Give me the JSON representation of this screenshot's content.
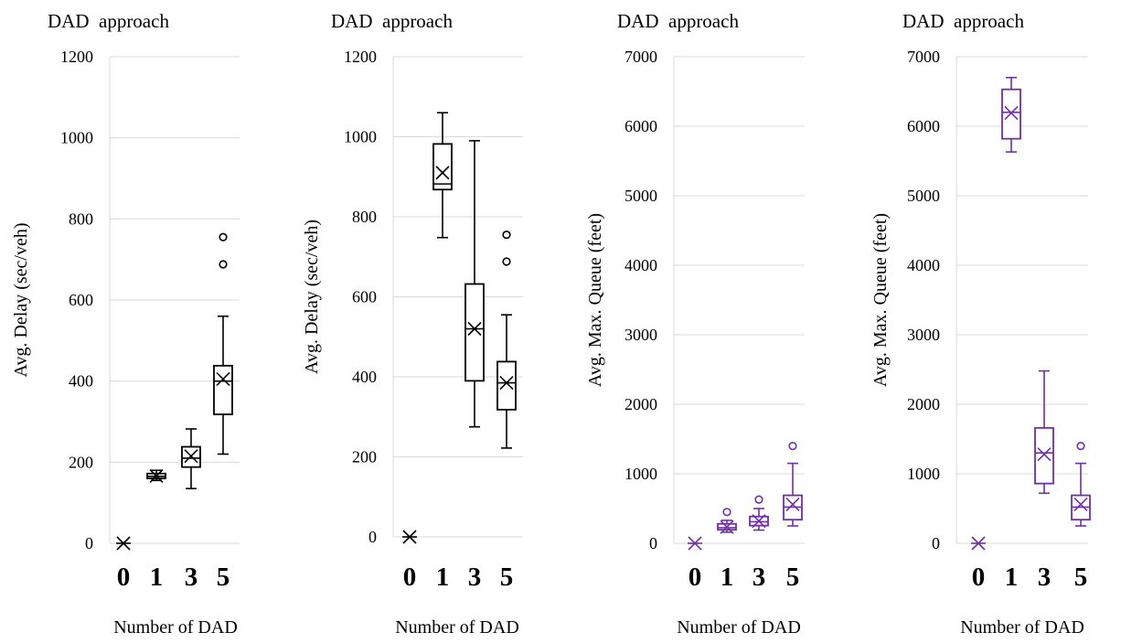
{
  "chart_data": [
    {
      "type": "box",
      "title": "DAD  approach",
      "xlabel": "Number of DAD",
      "ylabel": "Avg. Delay (sec/veh)",
      "ylim": [
        0,
        1200
      ],
      "yticks": [
        0,
        200,
        400,
        600,
        800,
        1000,
        1200
      ],
      "color": "#000000",
      "grid": true,
      "categories": [
        "0",
        "1",
        "3",
        "5"
      ],
      "boxes": [
        {
          "category": "0",
          "min": 0,
          "q1": 0,
          "median": 0,
          "q3": 0,
          "max": 0,
          "mean": 0,
          "outliers": []
        },
        {
          "category": "1",
          "min": 155,
          "q1": 160,
          "median": 165,
          "q3": 172,
          "max": 180,
          "mean": 166,
          "outliers": []
        },
        {
          "category": "3",
          "min": 135,
          "q1": 188,
          "median": 210,
          "q3": 238,
          "max": 282,
          "mean": 215,
          "outliers": []
        },
        {
          "category": "5",
          "min": 220,
          "q1": 318,
          "median": 400,
          "q3": 438,
          "max": 560,
          "mean": 405,
          "outliers": [
            688,
            755
          ]
        }
      ]
    },
    {
      "type": "box",
      "title": "DAD  approach",
      "xlabel": "Number of DAD",
      "ylabel": "Avg. Delay (sec/veh)",
      "ylim": [
        0,
        1200
      ],
      "yticks": [
        0,
        200,
        400,
        600,
        800,
        1000,
        1200
      ],
      "color": "#000000",
      "grid": true,
      "categories": [
        "0",
        "1",
        "3",
        "5"
      ],
      "boxes": [
        {
          "category": "0",
          "min": 0,
          "q1": 0,
          "median": 0,
          "q3": 0,
          "max": 0,
          "mean": 0,
          "outliers": []
        },
        {
          "category": "1",
          "min": 748,
          "q1": 868,
          "median": 882,
          "q3": 982,
          "max": 1060,
          "mean": 910,
          "outliers": []
        },
        {
          "category": "3",
          "min": 275,
          "q1": 390,
          "median": 520,
          "q3": 632,
          "max": 990,
          "mean": 520,
          "outliers": []
        },
        {
          "category": "5",
          "min": 222,
          "q1": 318,
          "median": 385,
          "q3": 438,
          "max": 555,
          "mean": 385,
          "outliers": [
            688,
            755
          ]
        }
      ]
    },
    {
      "type": "box",
      "title": "DAD  approach",
      "xlabel": "Number of DAD",
      "ylabel": "Avg. Max. Queue (feet)",
      "ylim": [
        0,
        7000
      ],
      "yticks": [
        0,
        1000,
        2000,
        3000,
        4000,
        5000,
        6000,
        7000
      ],
      "color": "#7030A0",
      "grid": true,
      "categories": [
        "0",
        "1",
        "3",
        "5"
      ],
      "boxes": [
        {
          "category": "0",
          "min": 0,
          "q1": 0,
          "median": 0,
          "q3": 0,
          "max": 0,
          "mean": 0,
          "outliers": []
        },
        {
          "category": "1",
          "min": 160,
          "q1": 195,
          "median": 225,
          "q3": 280,
          "max": 330,
          "mean": 235,
          "outliers": [
            450
          ]
        },
        {
          "category": "3",
          "min": 190,
          "q1": 255,
          "median": 310,
          "q3": 385,
          "max": 500,
          "mean": 320,
          "outliers": [
            630
          ]
        },
        {
          "category": "5",
          "min": 250,
          "q1": 340,
          "median": 520,
          "q3": 690,
          "max": 1150,
          "mean": 560,
          "outliers": [
            1400
          ]
        }
      ]
    },
    {
      "type": "box",
      "title": "DAD  approach",
      "xlabel": "Number of DAD",
      "ylabel": "Avg. Max. Queue (feet)",
      "ylim": [
        0,
        7000
      ],
      "yticks": [
        0,
        1000,
        2000,
        3000,
        4000,
        5000,
        6000,
        7000
      ],
      "color": "#7030A0",
      "grid": true,
      "categories": [
        "0",
        "1",
        "3",
        "5"
      ],
      "boxes": [
        {
          "category": "0",
          "min": 0,
          "q1": 0,
          "median": 0,
          "q3": 0,
          "max": 0,
          "mean": 0,
          "outliers": []
        },
        {
          "category": "1",
          "min": 5630,
          "q1": 5820,
          "median": 6200,
          "q3": 6530,
          "max": 6700,
          "mean": 6190,
          "outliers": []
        },
        {
          "category": "3",
          "min": 720,
          "q1": 860,
          "median": 1300,
          "q3": 1660,
          "max": 2480,
          "mean": 1280,
          "outliers": []
        },
        {
          "category": "5",
          "min": 250,
          "q1": 340,
          "median": 520,
          "q3": 690,
          "max": 1150,
          "mean": 560,
          "outliers": [
            1400
          ]
        }
      ]
    }
  ]
}
